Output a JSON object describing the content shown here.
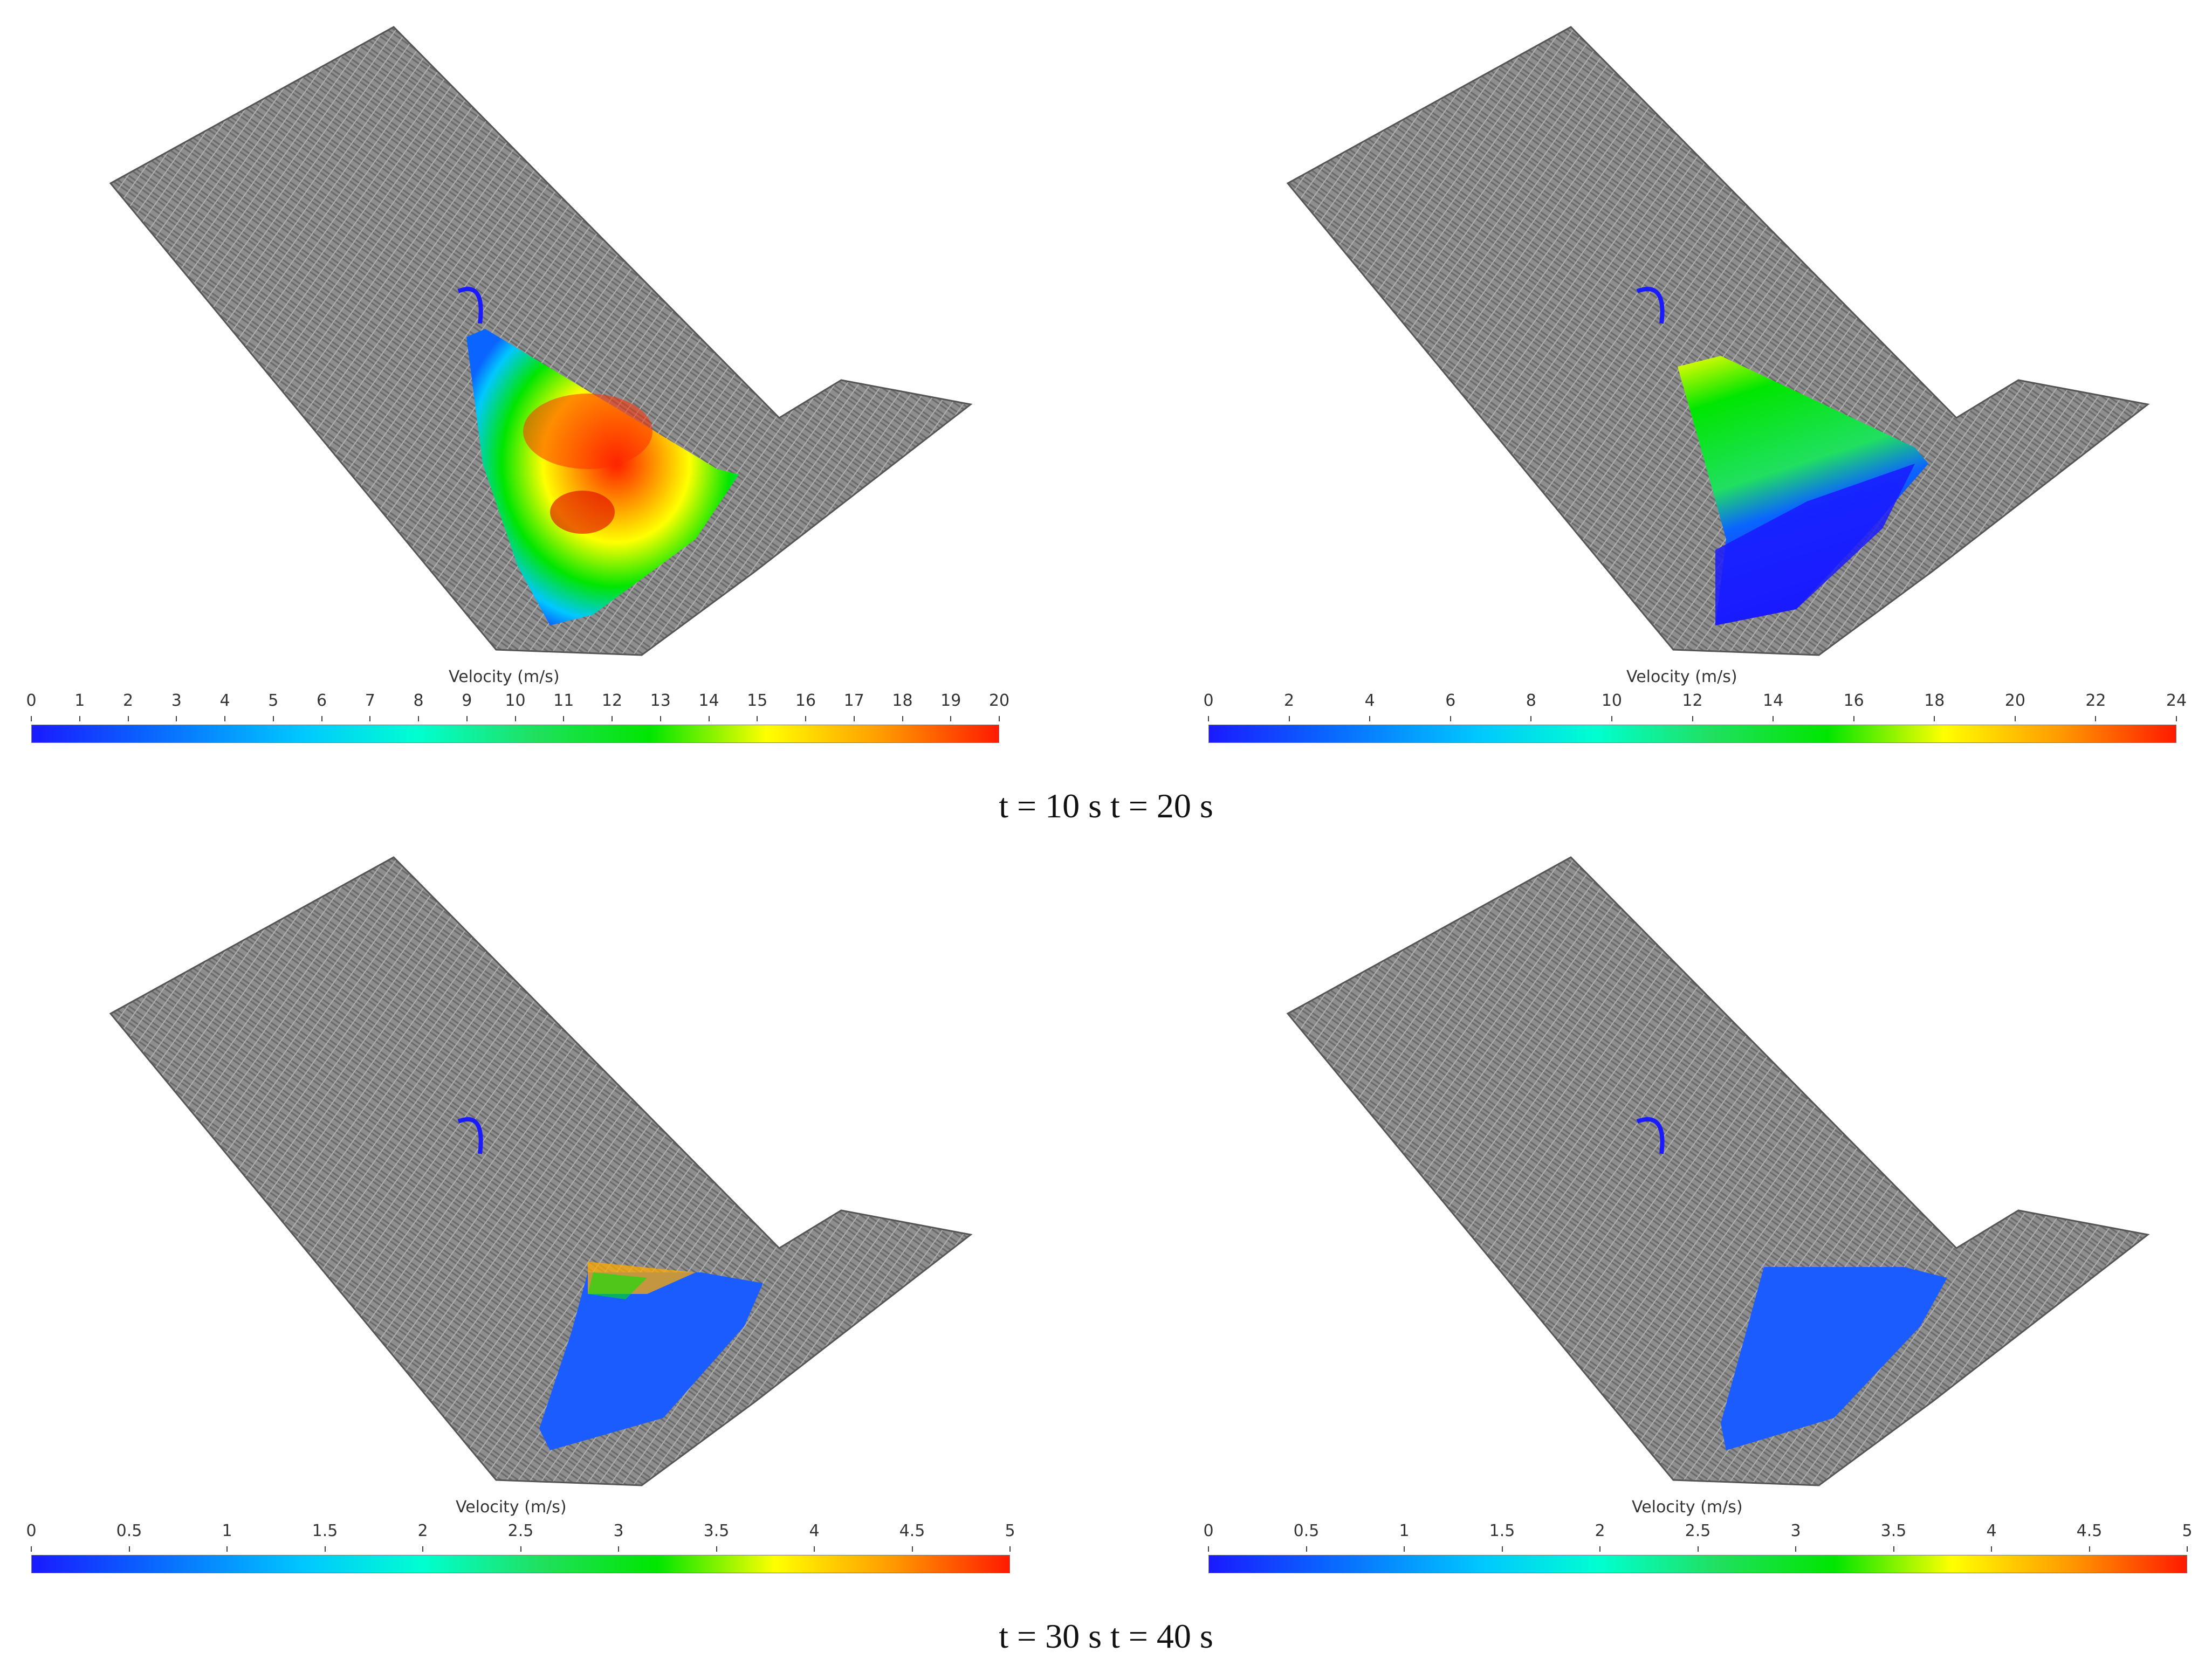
{
  "colors": {
    "terrain": "#8e8e8e",
    "terrain_dark": "#5a5a5a",
    "colormap": [
      "#1a1aff",
      "#0a64ff",
      "#00c8ff",
      "#00ffd0",
      "#20e060",
      "#00e600",
      "#ffff00",
      "#ff9a00",
      "#ff1a00"
    ]
  },
  "panels": [
    {
      "id": "p10",
      "cbar_title": "Velocity (m/s)",
      "ticks": [
        "0",
        "1",
        "2",
        "3",
        "4",
        "5",
        "6",
        "7",
        "8",
        "9",
        "10",
        "11",
        "12",
        "13",
        "14",
        "15",
        "16",
        "17",
        "18",
        "19",
        "20"
      ],
      "flow_state": "fast"
    },
    {
      "id": "p20",
      "cbar_title": "Velocity (m/s)",
      "ticks": [
        "0",
        "2",
        "4",
        "6",
        "8",
        "10",
        "12",
        "14",
        "16",
        "18",
        "20",
        "22",
        "24"
      ],
      "flow_state": "slowing"
    },
    {
      "id": "p30",
      "cbar_title": "Velocity (m/s)",
      "ticks": [
        "0",
        "0.5",
        "1",
        "1.5",
        "2",
        "2.5",
        "3",
        "3.5",
        "4",
        "4.5",
        "5"
      ],
      "flow_state": "deposited-mixed"
    },
    {
      "id": "p40",
      "cbar_title": "Velocity (m/s)",
      "ticks": [
        "0",
        "0.5",
        "1",
        "1.5",
        "2",
        "2.5",
        "3",
        "3.5",
        "4",
        "4.5",
        "5"
      ],
      "flow_state": "deposited"
    }
  ],
  "captions": {
    "top": "t = 10 s t = 20 s",
    "bottom": "t = 30 s t = 40 s"
  }
}
